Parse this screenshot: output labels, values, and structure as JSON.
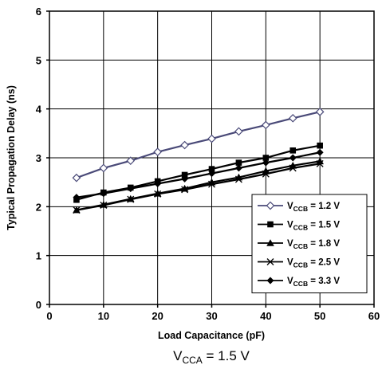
{
  "chart_data": {
    "type": "line",
    "xlabel": "Load Capacitance (pF)",
    "ylabel": "Typical Propagation Delay (ns)",
    "xlim": [
      0,
      60
    ],
    "ylim": [
      0,
      6
    ],
    "x_ticks": [
      "0",
      "10",
      "20",
      "30",
      "40",
      "50",
      "60"
    ],
    "y_ticks": [
      "0",
      "1",
      "2",
      "3",
      "4",
      "5",
      "6"
    ],
    "grid": true,
    "legend_position": "bottom-right",
    "caption": {
      "main": "V",
      "sub": "CCA",
      "rest": " = 1.5 V"
    },
    "x": [
      5,
      10,
      15,
      20,
      25,
      30,
      35,
      40,
      45,
      50
    ],
    "series": [
      {
        "label_main": "V",
        "label_sub": "CCB",
        "label_rest": " = 1.2 V",
        "marker": "diamond-open",
        "color": "#4a4a78",
        "values": [
          2.59,
          2.79,
          2.94,
          3.12,
          3.26,
          3.39,
          3.54,
          3.67,
          3.81,
          3.94
        ]
      },
      {
        "label_main": "V",
        "label_sub": "CCB",
        "label_rest": " = 1.5 V",
        "marker": "square",
        "color": "#000000",
        "values": [
          2.14,
          2.29,
          2.39,
          2.52,
          2.65,
          2.77,
          2.9,
          3.0,
          3.15,
          3.25
        ]
      },
      {
        "label_main": "V",
        "label_sub": "CCB",
        "label_rest": " = 1.8 V",
        "marker": "triangle",
        "color": "#000000",
        "values": [
          1.93,
          2.04,
          2.16,
          2.27,
          2.37,
          2.5,
          2.6,
          2.73,
          2.84,
          2.93
        ]
      },
      {
        "label_main": "V",
        "label_sub": "CCB",
        "label_rest": " = 2.5 V",
        "marker": "x",
        "color": "#000000",
        "values": [
          1.93,
          2.03,
          2.15,
          2.26,
          2.35,
          2.46,
          2.56,
          2.67,
          2.79,
          2.88
        ]
      },
      {
        "label_main": "V",
        "label_sub": "CCB",
        "label_rest": " = 3.3 V",
        "marker": "diamond",
        "color": "#000000",
        "values": [
          2.19,
          2.27,
          2.37,
          2.47,
          2.57,
          2.68,
          2.79,
          2.9,
          3.0,
          3.11
        ]
      }
    ]
  }
}
